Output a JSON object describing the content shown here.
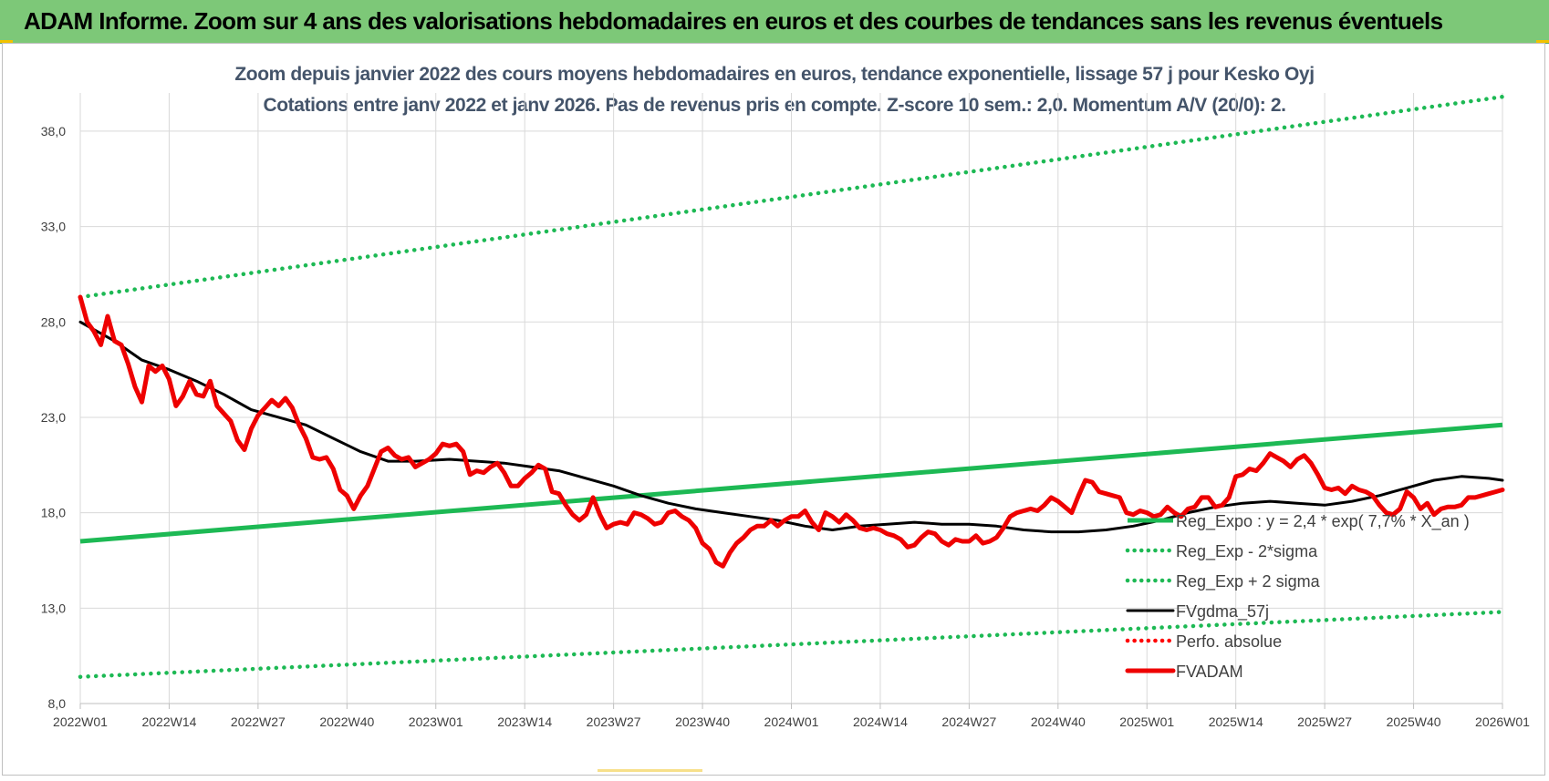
{
  "banner": {
    "title": "ADAM Informe. Zoom sur 4 ans des valorisations hebdomadaires en euros et des courbes de tendances sans les revenus éventuels"
  },
  "colors": {
    "banner_bg": "#7dc878",
    "trend_green": "#1db954",
    "smooth_black": "#000000",
    "price_red": "#ee0000",
    "perfo_red": "#ff0000",
    "subtitle": "#44546a"
  },
  "chart_data": {
    "type": "line",
    "title": "Zoom depuis janvier 2022 des cours moyens hebdomadaires en euros, tendance exponentielle, lissage 57 j pour Kesko Oyj",
    "subtitle": "Cotations entre janv 2022 et janv 2026. Pas de revenus pris en compte. Z-score 10 sem.: 2,0. Momentum A/V (20/0): 2.",
    "xlabel": "",
    "ylabel": "",
    "x_ticks": [
      "2022W01",
      "2022W14",
      "2022W27",
      "2022W40",
      "2023W01",
      "2023W14",
      "2023W27",
      "2023W40",
      "2024W01",
      "2024W14",
      "2024W27",
      "2024W40",
      "2025W01",
      "2025W14",
      "2025W27",
      "2025W40",
      "2026W01"
    ],
    "y_ticks": [
      "8,0",
      "13,0",
      "18,0",
      "23,0",
      "28,0",
      "33,0",
      "38,0"
    ],
    "xlim": [
      0,
      208
    ],
    "ylim": [
      8,
      40
    ],
    "grid": true,
    "legend_position": "bottom-right",
    "series": [
      {
        "name": "Reg_Expo : y = 2,4 * exp( 7,7% * X_an )",
        "style": "solid",
        "color": "#1db954",
        "points": [
          [
            0,
            16.5
          ],
          [
            208,
            22.6
          ]
        ]
      },
      {
        "name": "Reg_Exp - 2*sigma",
        "style": "dotted",
        "color": "#1db954",
        "points": [
          [
            0,
            9.4
          ],
          [
            208,
            12.8
          ]
        ]
      },
      {
        "name": "Reg_Exp + 2 sigma",
        "style": "dotted",
        "color": "#1db954",
        "points": [
          [
            0,
            29.3
          ],
          [
            208,
            39.8
          ]
        ]
      },
      {
        "name": "FVgdma_57j",
        "style": "solid",
        "color": "#000000",
        "points": [
          [
            0,
            28.0
          ],
          [
            5,
            27.0
          ],
          [
            9,
            26.0
          ],
          [
            13,
            25.5
          ],
          [
            17,
            24.9
          ],
          [
            21,
            24.2
          ],
          [
            25,
            23.4
          ],
          [
            29,
            23.0
          ],
          [
            33,
            22.6
          ],
          [
            37,
            21.9
          ],
          [
            41,
            21.2
          ],
          [
            45,
            20.7
          ],
          [
            49,
            20.7
          ],
          [
            54,
            20.8
          ],
          [
            58,
            20.7
          ],
          [
            62,
            20.6
          ],
          [
            66,
            20.4
          ],
          [
            70,
            20.2
          ],
          [
            74,
            19.8
          ],
          [
            78,
            19.4
          ],
          [
            82,
            18.9
          ],
          [
            86,
            18.5
          ],
          [
            90,
            18.2
          ],
          [
            94,
            18.0
          ],
          [
            98,
            17.8
          ],
          [
            102,
            17.6
          ],
          [
            106,
            17.3
          ],
          [
            110,
            17.1
          ],
          [
            114,
            17.3
          ],
          [
            118,
            17.4
          ],
          [
            122,
            17.5
          ],
          [
            126,
            17.4
          ],
          [
            130,
            17.4
          ],
          [
            134,
            17.3
          ],
          [
            138,
            17.1
          ],
          [
            142,
            17.0
          ],
          [
            146,
            17.0
          ],
          [
            150,
            17.1
          ],
          [
            154,
            17.3
          ],
          [
            158,
            17.6
          ],
          [
            162,
            18.0
          ],
          [
            166,
            18.3
          ],
          [
            170,
            18.5
          ],
          [
            174,
            18.6
          ],
          [
            178,
            18.5
          ],
          [
            182,
            18.4
          ],
          [
            186,
            18.6
          ],
          [
            190,
            18.9
          ],
          [
            194,
            19.3
          ],
          [
            198,
            19.7
          ],
          [
            202,
            19.9
          ],
          [
            206,
            19.8
          ],
          [
            208,
            19.7
          ]
        ]
      },
      {
        "name": "Perfo. absolue",
        "style": "dotted",
        "color": "#ff0000",
        "points": []
      },
      {
        "name": "FVADAM",
        "style": "solid",
        "color": "#ee0000",
        "points": [
          [
            0,
            29.3
          ],
          [
            1,
            28.0
          ],
          [
            2,
            27.5
          ],
          [
            3,
            26.8
          ],
          [
            4,
            28.3
          ],
          [
            5,
            27.0
          ],
          [
            6,
            26.8
          ],
          [
            7,
            25.8
          ],
          [
            8,
            24.6
          ],
          [
            9,
            23.8
          ],
          [
            10,
            25.7
          ],
          [
            11,
            25.4
          ],
          [
            12,
            25.7
          ],
          [
            13,
            25.0
          ],
          [
            14,
            23.6
          ],
          [
            15,
            24.1
          ],
          [
            16,
            24.9
          ],
          [
            17,
            24.2
          ],
          [
            18,
            24.1
          ],
          [
            19,
            24.9
          ],
          [
            20,
            23.6
          ],
          [
            21,
            23.2
          ],
          [
            22,
            22.8
          ],
          [
            23,
            21.8
          ],
          [
            24,
            21.3
          ],
          [
            25,
            22.4
          ],
          [
            26,
            23.1
          ],
          [
            27,
            23.5
          ],
          [
            28,
            23.9
          ],
          [
            29,
            23.6
          ],
          [
            30,
            24.0
          ],
          [
            31,
            23.5
          ],
          [
            32,
            22.6
          ],
          [
            33,
            21.9
          ],
          [
            34,
            20.9
          ],
          [
            35,
            20.8
          ],
          [
            36,
            20.9
          ],
          [
            37,
            20.3
          ],
          [
            38,
            19.2
          ],
          [
            39,
            18.9
          ],
          [
            40,
            18.2
          ],
          [
            41,
            18.9
          ],
          [
            42,
            19.4
          ],
          [
            43,
            20.3
          ],
          [
            44,
            21.2
          ],
          [
            45,
            21.4
          ],
          [
            46,
            21.0
          ],
          [
            47,
            20.8
          ],
          [
            48,
            20.9
          ],
          [
            49,
            20.4
          ],
          [
            50,
            20.6
          ],
          [
            51,
            20.8
          ],
          [
            52,
            21.1
          ],
          [
            53,
            21.6
          ],
          [
            54,
            21.5
          ],
          [
            55,
            21.6
          ],
          [
            56,
            21.2
          ],
          [
            57,
            20.0
          ],
          [
            58,
            20.2
          ],
          [
            59,
            20.1
          ],
          [
            60,
            20.4
          ],
          [
            61,
            20.6
          ],
          [
            62,
            20.1
          ],
          [
            63,
            19.4
          ],
          [
            64,
            19.4
          ],
          [
            65,
            19.8
          ],
          [
            66,
            20.1
          ],
          [
            67,
            20.5
          ],
          [
            68,
            20.3
          ],
          [
            69,
            19.1
          ],
          [
            70,
            19.0
          ],
          [
            71,
            18.4
          ],
          [
            72,
            17.9
          ],
          [
            73,
            17.6
          ],
          [
            74,
            17.9
          ],
          [
            75,
            18.8
          ],
          [
            76,
            17.9
          ],
          [
            77,
            17.2
          ],
          [
            78,
            17.4
          ],
          [
            79,
            17.5
          ],
          [
            80,
            17.4
          ],
          [
            81,
            18.0
          ],
          [
            82,
            17.9
          ],
          [
            83,
            17.7
          ],
          [
            84,
            17.4
          ],
          [
            85,
            17.5
          ],
          [
            86,
            18.0
          ],
          [
            87,
            18.1
          ],
          [
            88,
            17.8
          ],
          [
            89,
            17.6
          ],
          [
            90,
            17.2
          ],
          [
            91,
            16.4
          ],
          [
            92,
            16.1
          ],
          [
            93,
            15.4
          ],
          [
            94,
            15.2
          ],
          [
            95,
            15.9
          ],
          [
            96,
            16.4
          ],
          [
            97,
            16.7
          ],
          [
            98,
            17.1
          ],
          [
            99,
            17.3
          ],
          [
            100,
            17.3
          ],
          [
            101,
            17.6
          ],
          [
            102,
            17.3
          ],
          [
            103,
            17.6
          ],
          [
            104,
            17.8
          ],
          [
            105,
            17.8
          ],
          [
            106,
            18.1
          ],
          [
            107,
            17.5
          ],
          [
            108,
            17.1
          ],
          [
            109,
            18.0
          ],
          [
            110,
            17.8
          ],
          [
            111,
            17.5
          ],
          [
            112,
            17.9
          ],
          [
            113,
            17.6
          ],
          [
            114,
            17.2
          ],
          [
            115,
            17.1
          ],
          [
            116,
            17.2
          ],
          [
            117,
            17.1
          ],
          [
            118,
            16.9
          ],
          [
            119,
            16.8
          ],
          [
            120,
            16.6
          ],
          [
            121,
            16.2
          ],
          [
            122,
            16.3
          ],
          [
            123,
            16.7
          ],
          [
            124,
            17.0
          ],
          [
            125,
            16.9
          ],
          [
            126,
            16.5
          ],
          [
            127,
            16.3
          ],
          [
            128,
            16.6
          ],
          [
            129,
            16.5
          ],
          [
            130,
            16.5
          ],
          [
            131,
            16.8
          ],
          [
            132,
            16.4
          ],
          [
            133,
            16.5
          ],
          [
            134,
            16.7
          ],
          [
            135,
            17.2
          ],
          [
            136,
            17.8
          ],
          [
            137,
            18.0
          ],
          [
            138,
            18.1
          ],
          [
            139,
            18.2
          ],
          [
            140,
            18.1
          ],
          [
            141,
            18.4
          ],
          [
            142,
            18.8
          ],
          [
            143,
            18.6
          ],
          [
            144,
            18.3
          ],
          [
            145,
            18.0
          ],
          [
            146,
            18.9
          ],
          [
            147,
            19.7
          ],
          [
            148,
            19.6
          ],
          [
            149,
            19.1
          ],
          [
            150,
            19.0
          ],
          [
            151,
            18.9
          ],
          [
            152,
            18.8
          ],
          [
            153,
            18.0
          ],
          [
            154,
            17.9
          ],
          [
            155,
            18.1
          ],
          [
            156,
            18.0
          ],
          [
            157,
            17.8
          ],
          [
            158,
            17.9
          ],
          [
            159,
            18.3
          ],
          [
            160,
            18.0
          ],
          [
            161,
            17.8
          ],
          [
            162,
            18.2
          ],
          [
            163,
            18.3
          ],
          [
            164,
            18.8
          ],
          [
            165,
            18.8
          ],
          [
            166,
            18.3
          ],
          [
            167,
            18.4
          ],
          [
            168,
            18.8
          ],
          [
            169,
            19.9
          ],
          [
            170,
            20.0
          ],
          [
            171,
            20.3
          ],
          [
            172,
            20.2
          ],
          [
            173,
            20.6
          ],
          [
            174,
            21.1
          ],
          [
            175,
            20.9
          ],
          [
            176,
            20.7
          ],
          [
            177,
            20.4
          ],
          [
            178,
            20.8
          ],
          [
            179,
            21.0
          ],
          [
            180,
            20.6
          ],
          [
            181,
            20.0
          ],
          [
            182,
            19.3
          ],
          [
            183,
            19.2
          ],
          [
            184,
            19.3
          ],
          [
            185,
            19.0
          ],
          [
            186,
            19.4
          ],
          [
            187,
            19.2
          ],
          [
            188,
            19.1
          ],
          [
            189,
            18.9
          ],
          [
            190,
            18.4
          ],
          [
            191,
            18.0
          ],
          [
            192,
            17.9
          ],
          [
            193,
            18.2
          ],
          [
            194,
            19.1
          ],
          [
            195,
            18.8
          ],
          [
            196,
            18.2
          ],
          [
            197,
            18.5
          ],
          [
            198,
            17.9
          ],
          [
            199,
            18.2
          ],
          [
            200,
            18.3
          ],
          [
            201,
            18.3
          ],
          [
            202,
            18.4
          ],
          [
            203,
            18.8
          ],
          [
            204,
            18.8
          ],
          [
            205,
            18.9
          ],
          [
            206,
            19.0
          ],
          [
            207,
            19.1
          ],
          [
            208,
            19.2
          ]
        ]
      }
    ]
  }
}
